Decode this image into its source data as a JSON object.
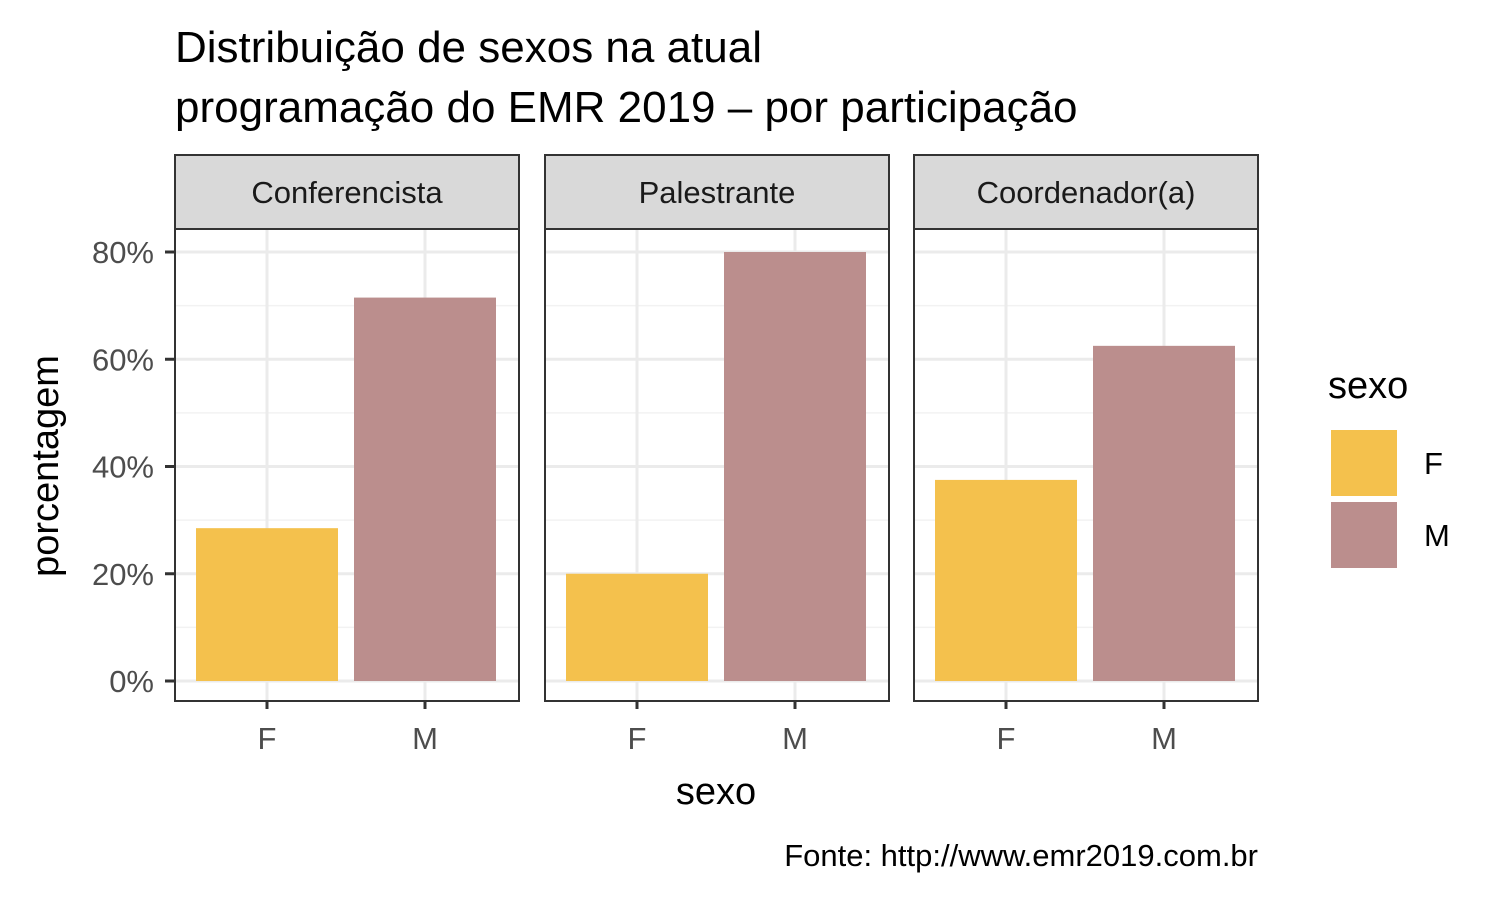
{
  "chart_data": {
    "type": "bar",
    "title_lines": [
      "Distribuição de sexos na atual",
      "programação do EMR 2019 – por participação"
    ],
    "xlabel": "sexo",
    "ylabel": "porcentagem",
    "caption": "Fonte: http://www.emr2019.com.br",
    "ylim": [
      0,
      0.8
    ],
    "y_ticks": [
      {
        "value": 0,
        "label": "0%"
      },
      {
        "value": 0.2,
        "label": "20%"
      },
      {
        "value": 0.4,
        "label": "40%"
      },
      {
        "value": 0.6,
        "label": "60%"
      },
      {
        "value": 0.8,
        "label": "80%"
      }
    ],
    "categories": [
      "F",
      "M"
    ],
    "legend": {
      "title": "sexo",
      "position": "right",
      "items": [
        {
          "label": "F",
          "color": "#F4C14D"
        },
        {
          "label": "M",
          "color": "#BB8E8D"
        }
      ]
    },
    "facets": [
      {
        "label": "Conferencista",
        "values": [
          0.285,
          0.715
        ]
      },
      {
        "label": "Palestrante",
        "values": [
          0.2,
          0.8
        ]
      },
      {
        "label": "Coordenador(a)",
        "values": [
          0.375,
          0.625
        ]
      }
    ],
    "grid": true
  }
}
